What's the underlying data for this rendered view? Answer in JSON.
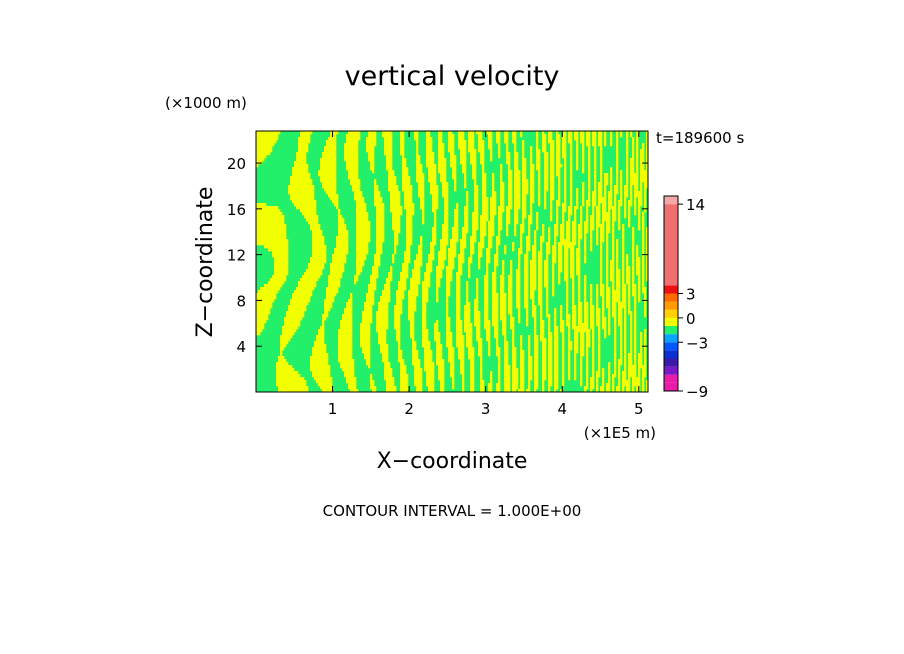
{
  "chart_data": {
    "type": "heatmap",
    "title": "vertical velocity",
    "ylabel": "Z−coordinate",
    "xlabel": "X−coordinate",
    "y_units": "(×1000 m)",
    "x_units": "(×1E5 m)",
    "time_label": "t=189600 s",
    "footer": "CONTOUR INTERVAL = 1.000E+00",
    "xlim": [
      0,
      5.12
    ],
    "ylim": [
      0,
      22.8
    ],
    "x_ticks": [
      1,
      2,
      3,
      4,
      5
    ],
    "x_tick_labels": [
      "1",
      "2",
      "3",
      "4",
      "5"
    ],
    "y_ticks": [
      4,
      8,
      12,
      16,
      20
    ],
    "y_tick_labels": [
      "4",
      "8",
      "12",
      "16",
      "20"
    ],
    "field_levels": [
      "-1..0",
      "0..1"
    ],
    "field_colors": [
      "#23f06a",
      "#f2ff00"
    ],
    "colorbar": {
      "levels": [
        -9,
        -8,
        -7,
        -6,
        -5,
        -4,
        -3,
        -2,
        -1,
        0,
        1,
        2,
        3,
        4,
        14,
        15
      ],
      "colors": [
        "#e81ca8",
        "#e81ca8",
        "#7a19c8",
        "#3a1aa6",
        "#0a2fd2",
        "#0057ff",
        "#0aa3ff",
        "#23f06a",
        "#f2ff00",
        "#ffd200",
        "#ff9a00",
        "#ff6a00",
        "#ee1111",
        "#f07070",
        "#f4a8a8"
      ],
      "tick_values": [
        -9,
        -3,
        0,
        3,
        14
      ],
      "tick_labels": [
        "−9",
        "−3",
        "0",
        "3",
        "14"
      ]
    }
  }
}
